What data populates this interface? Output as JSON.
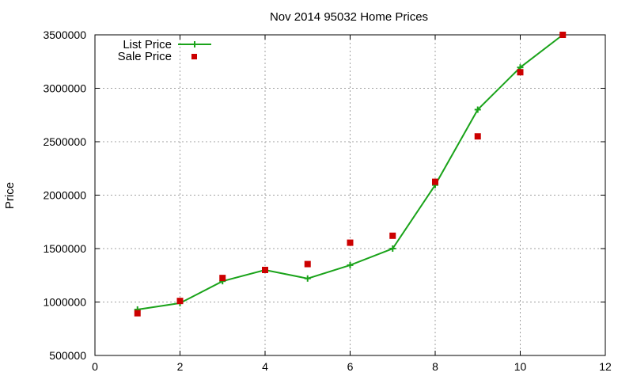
{
  "chart_data": {
    "type": "line",
    "title": "Nov 2014 95032 Home Prices",
    "xlabel": "",
    "ylabel": "Price",
    "xlim": [
      0,
      12
    ],
    "ylim": [
      500000,
      3500000
    ],
    "x_ticks": [
      0,
      2,
      4,
      6,
      8,
      10,
      12
    ],
    "y_ticks": [
      500000,
      1000000,
      1500000,
      2000000,
      2500000,
      3000000,
      3500000
    ],
    "grid": true,
    "legend_position": "top-left",
    "series": [
      {
        "name": "List Price",
        "style": "line-with-plus-markers",
        "color": "#1aa31a",
        "x": [
          1,
          2,
          3,
          4,
          5,
          6,
          7,
          8,
          9,
          10,
          11
        ],
        "values": [
          930000,
          990000,
          1195000,
          1300000,
          1220000,
          1345000,
          1500000,
          2095000,
          2800000,
          3195000,
          3500000
        ]
      },
      {
        "name": "Sale Price",
        "style": "square-markers",
        "color": "#cc0000",
        "x": [
          1,
          2,
          3,
          4,
          5,
          6,
          7,
          8,
          9,
          10,
          11
        ],
        "values": [
          895000,
          1010000,
          1225000,
          1300000,
          1355000,
          1555000,
          1620000,
          2125000,
          2550000,
          3150000,
          3500000
        ]
      }
    ]
  }
}
